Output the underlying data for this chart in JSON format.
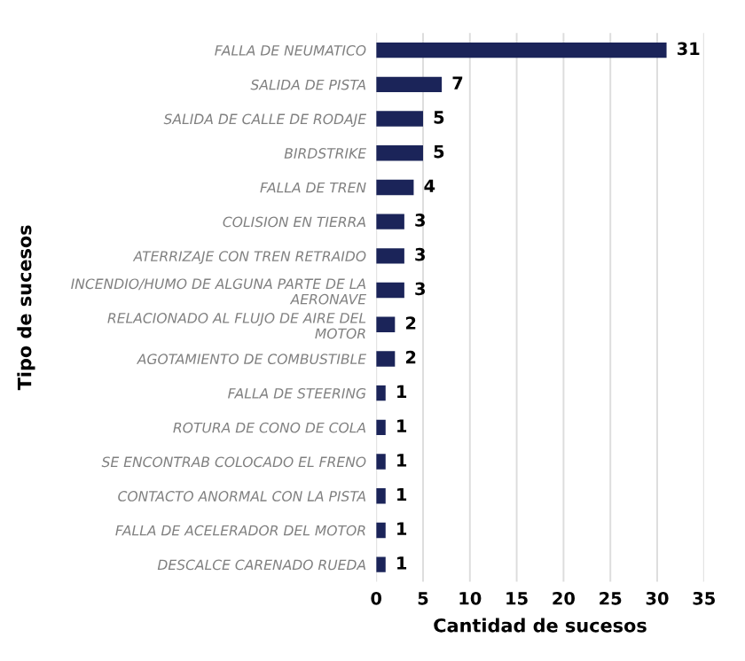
{
  "chart_data": {
    "type": "bar",
    "orientation": "horizontal",
    "xlabel": "Cantidad de sucesos",
    "ylabel": "Tipo de sucesos",
    "categories": [
      "FALLA DE NEUMATICO",
      "SALIDA DE PISTA",
      "SALIDA DE CALLE DE RODAJE",
      "BIRDSTRIKE",
      "FALLA DE TREN",
      "COLISION EN TIERRA",
      "ATERRIZAJE CON TREN RETRAIDO",
      "INCENDIO/HUMO DE ALGUNA PARTE DE LA\nAERONAVE",
      "RELACIONADO AL FLUJO DE AIRE DEL\nMOTOR",
      "AGOTAMIENTO DE COMBUSTIBLE",
      "FALLA DE STEERING",
      "ROTURA DE CONO DE COLA",
      "SE ENCONTRAB COLOCADO EL FRENO",
      "CONTACTO ANORMAL CON LA PISTA",
      "FALLA DE ACELERADOR DEL MOTOR",
      "DESCALCE CARENADO RUEDA"
    ],
    "values": [
      31,
      7,
      5,
      5,
      4,
      3,
      3,
      3,
      2,
      2,
      1,
      1,
      1,
      1,
      1,
      1
    ],
    "color": "#1b2459",
    "xlim": [
      0,
      35
    ],
    "xticks": [
      0,
      5,
      10,
      15,
      20,
      25,
      30,
      35
    ],
    "grid": "x",
    "data_labels": true
  }
}
